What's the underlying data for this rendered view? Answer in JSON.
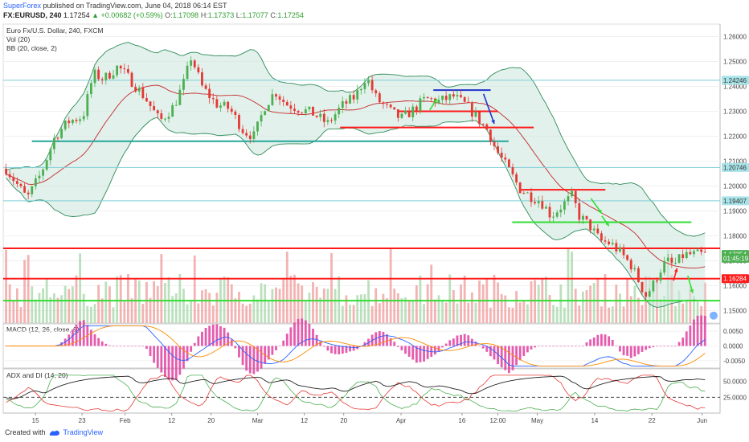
{
  "header": {
    "publisher": "SuperForex",
    "published_text": "published on TradingView.com, June 04, 2018 06:14 EST",
    "symbol": "FX:EURUSD, 240",
    "last": "1.17254",
    "change_arrow": "▲",
    "change": "+0.00682 (+0.59%)",
    "o_label": "O:",
    "o_val": "1.17098",
    "h_label": "H:",
    "h_val": "1.17373",
    "l_label": "L:",
    "l_val": "1.17077",
    "c_label": "C:",
    "c_val": "1.17254"
  },
  "pane_labels": {
    "title": "Euro Fx/U.S. Dollar, 240, FXCM",
    "vol": "Vol (20)",
    "bb": "BB (20, close, 2)",
    "macd": "MACD (12, 26, close, 9)",
    "adx": "ADX and DI (14, 20)"
  },
  "footer": {
    "created_with": "Created with",
    "brand": "TradingView"
  },
  "colors": {
    "up": "#4caf50",
    "down": "#e53935",
    "bb_line": "#2e8b57",
    "bb_fill": "#cfe8e0",
    "basis": "#c62828",
    "teal": "#26a69a",
    "cyan": "#7fcfd8",
    "red_line": "#ff1a1a",
    "green_line": "#33dd33",
    "blue_line": "#2233cc",
    "macd": "#2962ff",
    "signal": "#ff8c00",
    "hist": "#e040a0",
    "adx": "#222222",
    "di_plus": "#4caf50",
    "di_minus": "#e53935"
  },
  "chart_data": {
    "type": "candlestick",
    "ylim": [
      1.145,
      1.265
    ],
    "y_ticks": [
      "1.26000",
      "1.25000",
      "1.24000",
      "1.23000",
      "1.22000",
      "1.21000",
      "1.20000",
      "1.19000",
      "1.18000",
      "1.17000",
      "1.16000",
      "1.15000"
    ],
    "x_ticks": [
      "15",
      "23",
      "Feb",
      "12",
      "20",
      "Mar",
      "12",
      "20",
      "Apr",
      "16",
      "12:00",
      "May",
      "14",
      "22",
      "Jun"
    ],
    "price_badges": [
      {
        "text": "1.24246",
        "value": 1.24246,
        "color": "#a7e3e8",
        "text_color": "#333"
      },
      {
        "text": "1.20746",
        "value": 1.20746,
        "color": "#a7e3e8",
        "text_color": "#333"
      },
      {
        "text": "1.19407",
        "value": 1.19407,
        "color": "#a7e3e8",
        "text_color": "#333"
      },
      {
        "text": "1.17254",
        "value": 1.17254,
        "color": "#4caf50",
        "text_color": "#fff"
      },
      {
        "text": "01:45:19",
        "value": 1.171,
        "color": "#4caf50",
        "text_color": "#fff"
      },
      {
        "text": "1.16284",
        "value": 1.16284,
        "color": "#ff1a1a",
        "text_color": "#fff"
      }
    ],
    "hlines": [
      {
        "value": 1.24246,
        "from": 0.0,
        "to": 1.0,
        "color": "cyan",
        "width": 1
      },
      {
        "value": 1.20746,
        "from": 0.0,
        "to": 1.0,
        "color": "cyan",
        "width": 1
      },
      {
        "value": 1.19407,
        "from": 0.0,
        "to": 1.0,
        "color": "cyan",
        "width": 1
      },
      {
        "value": 1.218,
        "from": 0.04,
        "to": 0.705,
        "color": "teal",
        "width": 2
      },
      {
        "value": 1.2235,
        "from": 0.47,
        "to": 0.74,
        "color": "red_line",
        "width": 2
      },
      {
        "value": 1.23,
        "from": 0.55,
        "to": 0.69,
        "color": "red_line",
        "width": 2
      },
      {
        "value": 1.2385,
        "from": 0.6,
        "to": 0.68,
        "color": "blue_line",
        "width": 2
      },
      {
        "value": 1.1985,
        "from": 0.72,
        "to": 0.84,
        "color": "red_line",
        "width": 2
      },
      {
        "value": 1.1855,
        "from": 0.71,
        "to": 0.96,
        "color": "green_line",
        "width": 2
      },
      {
        "value": 1.175,
        "from": 0.0,
        "to": 1.0,
        "color": "red_line",
        "width": 2
      },
      {
        "value": 1.16284,
        "from": 0.0,
        "to": 1.0,
        "color": "red_line",
        "width": 2
      },
      {
        "value": 1.154,
        "from": 0.0,
        "to": 1.0,
        "color": "green_line",
        "width": 2
      }
    ],
    "anchors": [
      [
        0,
        1.207
      ],
      [
        0.03,
        1.195
      ],
      [
        0.05,
        1.205
      ],
      [
        0.07,
        1.22
      ],
      [
        0.09,
        1.226
      ],
      [
        0.11,
        1.228
      ],
      [
        0.125,
        1.245
      ],
      [
        0.14,
        1.243
      ],
      [
        0.16,
        1.248
      ],
      [
        0.18,
        1.242
      ],
      [
        0.2,
        1.235
      ],
      [
        0.22,
        1.226
      ],
      [
        0.24,
        1.232
      ],
      [
        0.255,
        1.242
      ],
      [
        0.265,
        1.252
      ],
      [
        0.28,
        1.24
      ],
      [
        0.3,
        1.233
      ],
      [
        0.32,
        1.231
      ],
      [
        0.34,
        1.222
      ],
      [
        0.355,
        1.22
      ],
      [
        0.37,
        1.232
      ],
      [
        0.385,
        1.238
      ],
      [
        0.4,
        1.233
      ],
      [
        0.42,
        1.231
      ],
      [
        0.44,
        1.229
      ],
      [
        0.46,
        1.225
      ],
      [
        0.48,
        1.232
      ],
      [
        0.5,
        1.236
      ],
      [
        0.515,
        1.244
      ],
      [
        0.53,
        1.235
      ],
      [
        0.55,
        1.23
      ],
      [
        0.565,
        1.227
      ],
      [
        0.58,
        1.23
      ],
      [
        0.6,
        1.235
      ],
      [
        0.62,
        1.234
      ],
      [
        0.64,
        1.236
      ],
      [
        0.66,
        1.232
      ],
      [
        0.675,
        1.227
      ],
      [
        0.69,
        1.222
      ],
      [
        0.7,
        1.215
      ],
      [
        0.72,
        1.206
      ],
      [
        0.735,
        1.199
      ],
      [
        0.75,
        1.196
      ],
      [
        0.765,
        1.194
      ],
      [
        0.78,
        1.188
      ],
      [
        0.795,
        1.192
      ],
      [
        0.81,
        1.196
      ],
      [
        0.82,
        1.188
      ],
      [
        0.835,
        1.184
      ],
      [
        0.85,
        1.178
      ],
      [
        0.865,
        1.177
      ],
      [
        0.88,
        1.173
      ],
      [
        0.895,
        1.168
      ],
      [
        0.905,
        1.162
      ],
      [
        0.915,
        1.156
      ],
      [
        0.925,
        1.16
      ],
      [
        0.935,
        1.166
      ],
      [
        0.945,
        1.17
      ],
      [
        0.955,
        1.168
      ],
      [
        0.97,
        1.1725
      ]
    ],
    "arrows": [
      {
        "from": [
          0.595,
          1.2305
        ],
        "to": [
          0.605,
          1.235
        ],
        "color": "green_line"
      },
      {
        "from": [
          0.67,
          1.237
        ],
        "to": [
          0.685,
          1.225
        ],
        "color": "blue_line"
      },
      {
        "from": [
          0.82,
          1.195
        ],
        "to": [
          0.835,
          1.189
        ],
        "color": "green_line"
      },
      {
        "from": [
          0.835,
          1.188
        ],
        "to": [
          0.845,
          1.184
        ],
        "color": "green_line"
      },
      {
        "from": [
          0.935,
          1.162
        ],
        "to": [
          0.94,
          1.167
        ],
        "color": "red_line"
      },
      {
        "from": [
          0.955,
          1.164
        ],
        "to": [
          0.962,
          1.157
        ],
        "color": "green_line"
      }
    ],
    "macd_ticks": [
      "0.0050",
      "0.0000",
      "-0.0050"
    ],
    "macd_range": [
      -0.0075,
      0.0075
    ],
    "adx_ticks": [
      "50.0000",
      "25.0000"
    ],
    "adx_range": [
      0,
      70
    ],
    "adx_dashed": 25,
    "candle_count": 190
  }
}
